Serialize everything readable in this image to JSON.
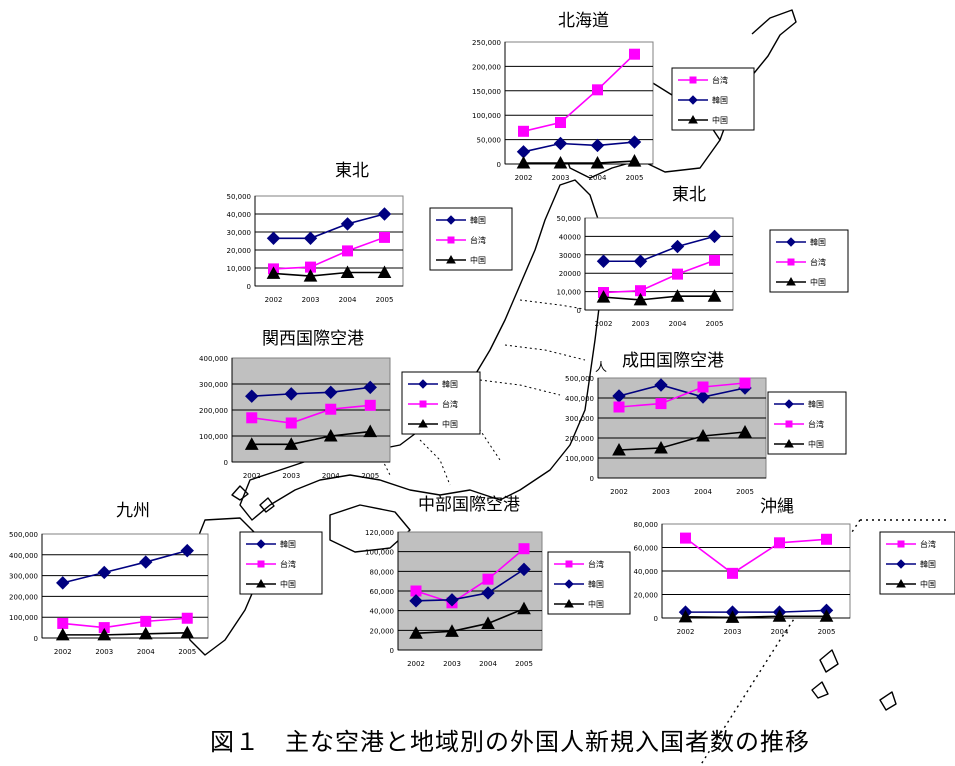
{
  "caption": "図１　主な空港と地域別の外国人新規入国者数の推移",
  "unit_label": "人",
  "colors": {
    "korea": "#000080",
    "taiwan": "#ff00ff",
    "china": "#000000",
    "gray_plot": "#c0c0c0"
  },
  "chart_data": [
    {
      "id": "hokkaido",
      "type": "line",
      "title": "北海道",
      "categories": [
        "2002",
        "2003",
        "2004",
        "2005"
      ],
      "ylim": [
        0,
        250000
      ],
      "yticks": [
        "250,000",
        "200,000",
        "150,000",
        "100,000",
        "50,000",
        "0"
      ],
      "series": [
        {
          "name": "台湾",
          "color": "#ff00ff",
          "marker": "square",
          "values": [
            67000,
            85000,
            152000,
            225000
          ]
        },
        {
          "name": "韓国",
          "color": "#000080",
          "marker": "diamond",
          "values": [
            25000,
            42000,
            38000,
            45000
          ]
        },
        {
          "name": "中国",
          "color": "#000000",
          "marker": "triangle",
          "values": [
            2000,
            2000,
            2000,
            6000
          ]
        }
      ]
    },
    {
      "id": "tohoku",
      "type": "line",
      "title": "東北",
      "categories": [
        "2002",
        "2003",
        "2004",
        "2005"
      ],
      "ylim": [
        0,
        50000
      ],
      "yticks": [
        "50,000",
        "40,000",
        "30,000",
        "20,000",
        "10,000",
        "0"
      ],
      "series": [
        {
          "name": "韓国",
          "color": "#000080",
          "marker": "diamond",
          "values": [
            26500,
            26500,
            34500,
            40000
          ]
        },
        {
          "name": "台湾",
          "color": "#ff00ff",
          "marker": "square",
          "values": [
            9500,
            10500,
            19500,
            27000
          ]
        },
        {
          "name": "中国",
          "color": "#000000",
          "marker": "triangle",
          "values": [
            7000,
            5500,
            7500,
            7500
          ]
        }
      ]
    },
    {
      "id": "tohoku2",
      "type": "line",
      "title": "東北",
      "categories": [
        "2002",
        "2003",
        "2004",
        "2005"
      ],
      "ylim": [
        0,
        50000
      ],
      "yticks": [
        "50,000",
        "40000",
        "30000",
        "20000",
        "10,000",
        "0"
      ],
      "series": [
        {
          "name": "韓国",
          "color": "#000080",
          "marker": "diamond",
          "values": [
            26500,
            26500,
            34500,
            40000
          ]
        },
        {
          "name": "台湾",
          "color": "#ff00ff",
          "marker": "square",
          "values": [
            9500,
            10500,
            19500,
            27000
          ]
        },
        {
          "name": "中国",
          "color": "#000000",
          "marker": "triangle",
          "values": [
            7000,
            5500,
            7500,
            7500
          ]
        }
      ]
    },
    {
      "id": "kansai",
      "type": "line",
      "title": "関西国際空港",
      "categories": [
        "2002",
        "2003",
        "2004",
        "2005"
      ],
      "ylim": [
        0,
        400000
      ],
      "yticks": [
        "400,000",
        "300,000",
        "200,000",
        "100,000",
        "0"
      ],
      "series": [
        {
          "name": "韓国",
          "color": "#000080",
          "marker": "diamond",
          "values": [
            253000,
            262000,
            268000,
            287000
          ]
        },
        {
          "name": "台湾",
          "color": "#ff00ff",
          "marker": "square",
          "values": [
            170000,
            150000,
            203000,
            218000
          ]
        },
        {
          "name": "中国",
          "color": "#000000",
          "marker": "triangle",
          "values": [
            68000,
            68000,
            100000,
            117000
          ]
        }
      ]
    },
    {
      "id": "narita",
      "type": "line",
      "title": "成田国際空港",
      "categories": [
        "2002",
        "2003",
        "2004",
        "2005"
      ],
      "ylim": [
        0,
        500000
      ],
      "yticks": [
        "500,000",
        "400,000",
        "300,000",
        "200,000",
        "100,000",
        "0"
      ],
      "series": [
        {
          "name": "韓国",
          "color": "#000080",
          "marker": "diamond",
          "values": [
            410000,
            465000,
            405000,
            450000
          ]
        },
        {
          "name": "台湾",
          "color": "#ff00ff",
          "marker": "square",
          "values": [
            355000,
            372000,
            455000,
            475000
          ]
        },
        {
          "name": "中国",
          "color": "#000000",
          "marker": "triangle",
          "values": [
            140000,
            150000,
            210000,
            230000
          ]
        }
      ]
    },
    {
      "id": "kyushu",
      "type": "line",
      "title": "九州",
      "categories": [
        "2002",
        "2003",
        "2004",
        "2005"
      ],
      "ylim": [
        0,
        500000
      ],
      "yticks": [
        "500,000",
        "400,000",
        "300,000",
        "200,000",
        "100,000",
        "0"
      ],
      "series": [
        {
          "name": "韓国",
          "color": "#000080",
          "marker": "diamond",
          "values": [
            265000,
            315000,
            365000,
            420000
          ]
        },
        {
          "name": "台湾",
          "color": "#ff00ff",
          "marker": "square",
          "values": [
            70000,
            50000,
            80000,
            95000
          ]
        },
        {
          "name": "中国",
          "color": "#000000",
          "marker": "triangle",
          "values": [
            15000,
            15000,
            20000,
            25000
          ]
        }
      ]
    },
    {
      "id": "chubu",
      "type": "line",
      "title": "中部国際空港",
      "categories": [
        "2002",
        "2003",
        "2004",
        "2005"
      ],
      "ylim": [
        0,
        120000
      ],
      "yticks": [
        "120,000",
        "100,000",
        "80,000",
        "60,000",
        "40,000",
        "20,000",
        "0"
      ],
      "series": [
        {
          "name": "台湾",
          "color": "#ff00ff",
          "marker": "square",
          "values": [
            60000,
            48000,
            72000,
            103000
          ]
        },
        {
          "name": "韓国",
          "color": "#000080",
          "marker": "diamond",
          "values": [
            50000,
            51000,
            58000,
            82000
          ]
        },
        {
          "name": "中国",
          "color": "#000000",
          "marker": "triangle",
          "values": [
            17000,
            19000,
            27000,
            42000
          ]
        }
      ]
    },
    {
      "id": "okinawa",
      "type": "line",
      "title": "沖縄",
      "categories": [
        "2002",
        "2003",
        "2004",
        "2005"
      ],
      "ylim": [
        0,
        80000
      ],
      "yticks": [
        "80,000",
        "60,000",
        "40,000",
        "20,000",
        "0"
      ],
      "series": [
        {
          "name": "台湾",
          "color": "#ff00ff",
          "marker": "square",
          "values": [
            68000,
            38000,
            64000,
            67000
          ]
        },
        {
          "name": "韓国",
          "color": "#000080",
          "marker": "diamond",
          "values": [
            5000,
            5000,
            5000,
            6500
          ]
        },
        {
          "name": "中国",
          "color": "#000000",
          "marker": "triangle",
          "values": [
            1000,
            500,
            1500,
            1500
          ]
        }
      ]
    }
  ]
}
